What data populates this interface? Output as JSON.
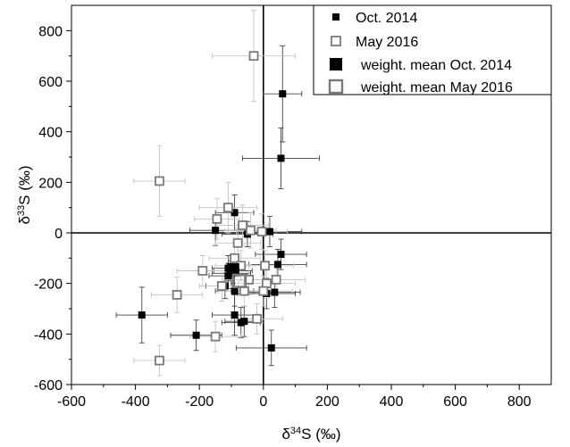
{
  "chart_data": {
    "type": "scatter",
    "xlabel": {
      "main": "δ",
      "sup": "34",
      "rest": "S (‰)"
    },
    "ylabel": {
      "main": "δ",
      "sup": "33",
      "rest": "S (‰)"
    },
    "xlim": [
      -600,
      900
    ],
    "ylim": [
      -600,
      900
    ],
    "xticks": [
      -600,
      -400,
      -200,
      0,
      200,
      400,
      600,
      800
    ],
    "yticks": [
      -600,
      -400,
      -200,
      0,
      200,
      400,
      600,
      800
    ],
    "legend_position": "top-right",
    "series": [
      {
        "name": "Oct. 2014",
        "marker": "filled-square",
        "color": "#000000",
        "error_color": "#444444",
        "points": [
          {
            "x": 60,
            "y": 550,
            "ex": 60,
            "ey": 190
          },
          {
            "x": 55,
            "y": 295,
            "ex": 120,
            "ey": 120
          },
          {
            "x": -90,
            "y": 80,
            "ex": 60,
            "ey": 70
          },
          {
            "x": -150,
            "y": 10,
            "ex": 80,
            "ey": 60
          },
          {
            "x": 20,
            "y": 5,
            "ex": 100,
            "ey": 60
          },
          {
            "x": -50,
            "y": -5,
            "ex": 80,
            "ey": 50
          },
          {
            "x": 55,
            "y": -85,
            "ex": 80,
            "ey": 60
          },
          {
            "x": 45,
            "y": -125,
            "ex": 90,
            "ey": 60
          },
          {
            "x": -110,
            "y": -140,
            "ex": 50,
            "ey": 50
          },
          {
            "x": -95,
            "y": -150,
            "ex": 60,
            "ey": 50
          },
          {
            "x": -100,
            "y": -160,
            "ex": 60,
            "ey": 50
          },
          {
            "x": -110,
            "y": -170,
            "ex": 60,
            "ey": 50
          },
          {
            "x": -120,
            "y": -210,
            "ex": 60,
            "ey": 50
          },
          {
            "x": -90,
            "y": -230,
            "ex": 60,
            "ey": 60
          },
          {
            "x": 10,
            "y": -240,
            "ex": 90,
            "ey": 60
          },
          {
            "x": 35,
            "y": -235,
            "ex": 80,
            "ey": 60
          },
          {
            "x": -90,
            "y": -325,
            "ex": 70,
            "ey": 80
          },
          {
            "x": -380,
            "y": -325,
            "ex": 80,
            "ey": 110
          },
          {
            "x": -60,
            "y": -350,
            "ex": 60,
            "ey": 60
          },
          {
            "x": -70,
            "y": -355,
            "ex": 60,
            "ey": 60
          },
          {
            "x": -210,
            "y": -405,
            "ex": 80,
            "ey": 60
          },
          {
            "x": 25,
            "y": -455,
            "ex": 110,
            "ey": 70
          }
        ]
      },
      {
        "name": "May 2016",
        "marker": "open-square",
        "color": "#7a7a7a",
        "error_color": "#c4c4c4",
        "points": [
          {
            "x": -30,
            "y": 700,
            "ex": 130,
            "ey": 180
          },
          {
            "x": -325,
            "y": 205,
            "ex": 80,
            "ey": 140
          },
          {
            "x": -110,
            "y": 100,
            "ex": 90,
            "ey": 100
          },
          {
            "x": -145,
            "y": 55,
            "ex": 70,
            "ey": 80
          },
          {
            "x": -65,
            "y": 30,
            "ex": 80,
            "ey": 80
          },
          {
            "x": -40,
            "y": 10,
            "ex": 80,
            "ey": 70
          },
          {
            "x": -5,
            "y": 5,
            "ex": 80,
            "ey": 70
          },
          {
            "x": -80,
            "y": -40,
            "ex": 70,
            "ey": 60
          },
          {
            "x": -90,
            "y": -100,
            "ex": 80,
            "ey": 60
          },
          {
            "x": -70,
            "y": -130,
            "ex": 80,
            "ey": 60
          },
          {
            "x": -190,
            "y": -150,
            "ex": 80,
            "ey": 60
          },
          {
            "x": 5,
            "y": -130,
            "ex": 90,
            "ey": 60
          },
          {
            "x": -45,
            "y": -185,
            "ex": 80,
            "ey": 60
          },
          {
            "x": 40,
            "y": -185,
            "ex": 90,
            "ey": 60
          },
          {
            "x": 10,
            "y": -200,
            "ex": 90,
            "ey": 60
          },
          {
            "x": -130,
            "y": -210,
            "ex": 70,
            "ey": 60
          },
          {
            "x": -60,
            "y": -230,
            "ex": 80,
            "ey": 60
          },
          {
            "x": 0,
            "y": -230,
            "ex": 90,
            "ey": 60
          },
          {
            "x": -270,
            "y": -245,
            "ex": 80,
            "ey": 70
          },
          {
            "x": -20,
            "y": -340,
            "ex": 80,
            "ey": 60
          },
          {
            "x": -150,
            "y": -410,
            "ex": 80,
            "ey": 60
          },
          {
            "x": -325,
            "y": -505,
            "ex": 80,
            "ey": 60
          }
        ]
      }
    ],
    "means": [
      {
        "name": "weight. mean Oct. 2014",
        "marker": "filled-square-large",
        "color": "#000000",
        "x": -95,
        "y": -145
      },
      {
        "name": "weight. mean May 2016",
        "marker": "open-square-large",
        "color": "#7a7a7a",
        "x": -75,
        "y": -190
      }
    ],
    "legend": [
      {
        "label": "Oct. 2014",
        "marker": "filled-square"
      },
      {
        "label": "May 2016",
        "marker": "open-square"
      },
      {
        "label": "weight. mean Oct. 2014",
        "marker": "filled-square-large"
      },
      {
        "label": "weight. mean May 2016",
        "marker": "open-square-large"
      }
    ]
  }
}
